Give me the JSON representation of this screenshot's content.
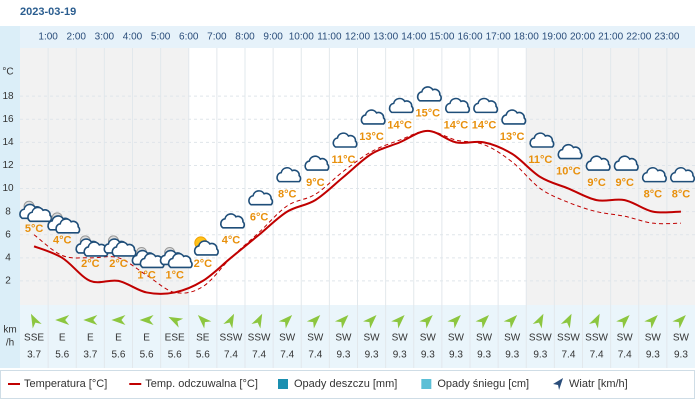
{
  "date": "2023-03-19",
  "chart_data": {
    "type": "line",
    "y_unit": "°C",
    "categories": [
      null,
      "1:00",
      "2:00",
      "3:00",
      "4:00",
      "5:00",
      "6:00",
      "7:00",
      "8:00",
      "9:00",
      "10:00",
      "11:00",
      "12:00",
      "13:00",
      "14:00",
      "15:00",
      "16:00",
      "17:00",
      "18:00",
      "19:00",
      "20:00",
      "21:00",
      "22:00",
      "23:00"
    ],
    "ylim": [
      0,
      22
    ],
    "yticks": [
      2,
      4,
      6,
      8,
      10,
      12,
      14,
      16,
      18
    ],
    "grid": true,
    "series": [
      {
        "name": "Temperatura [°C]",
        "color": "#c00000",
        "dash": false,
        "values": [
          5,
          4,
          2,
          2,
          1,
          1,
          2,
          4,
          6,
          8,
          9,
          11,
          13,
          14,
          15,
          14,
          14,
          13,
          11,
          10,
          9,
          9,
          8,
          8
        ],
        "value_labels": [
          "5°C",
          "4°C",
          "2°C",
          "2°C",
          "1°C",
          "1°C",
          "2°C",
          "4°C",
          "6°C",
          "8°C",
          "9°C",
          "11°C",
          "13°C",
          "14°C",
          "15°C",
          "14°C",
          "14°C",
          "13°C",
          "11°C",
          "10°C",
          "9°C",
          "9°C",
          "8°C",
          "8°C"
        ]
      },
      {
        "name": "Temp. odczuwalna [°C]",
        "color": "#c00000",
        "dash": true,
        "values": [
          6,
          4.2,
          4,
          4,
          2.5,
          1,
          1.5,
          4,
          6.2,
          8.5,
          9.5,
          11.5,
          13.2,
          14.2,
          15,
          14.2,
          13.8,
          12.3,
          10,
          8.8,
          8,
          7.6,
          7,
          7
        ]
      }
    ],
    "wind": {
      "unit": [
        "km",
        "/h"
      ],
      "directions": [
        "SSE",
        "E",
        "E",
        "E",
        "E",
        "ESE",
        "SE",
        "SSW",
        "SSW",
        "SW",
        "SW",
        "SW",
        "SW",
        "SW",
        "SW",
        "SW",
        "SW",
        "SW",
        "SSW",
        "SSW",
        "SSW",
        "SW",
        "SW",
        "SW"
      ],
      "speeds": [
        3.7,
        5.6,
        3.7,
        5.6,
        5.6,
        5.6,
        5.6,
        7.4,
        7.4,
        7.4,
        7.4,
        9.3,
        9.3,
        9.3,
        9.3,
        9.3,
        9.3,
        9.3,
        9.3,
        7.4,
        7.4,
        7.4,
        9.3,
        9.3
      ],
      "color": "#8cc63f"
    },
    "legend_extra": [
      {
        "name": "Opady deszczu [mm]",
        "color": "#1a8fb0"
      },
      {
        "name": "Opady śniegu [cm]",
        "color": "#5bbfd6"
      },
      {
        "name": "Wiatr [km/h]",
        "color": "#2a4d7a"
      }
    ]
  }
}
